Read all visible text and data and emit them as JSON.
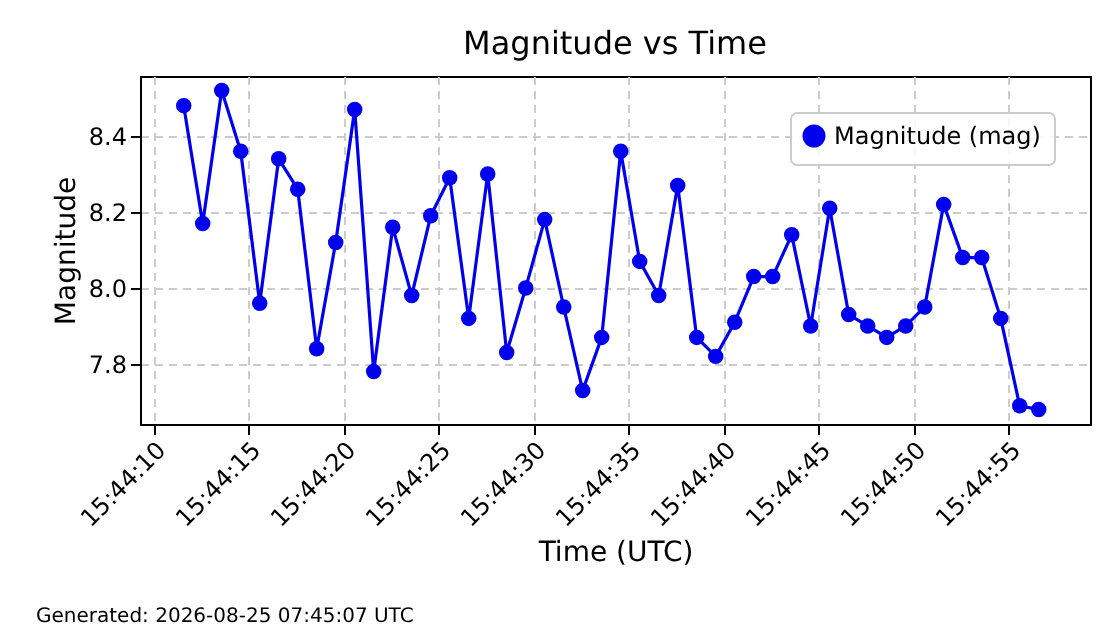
{
  "chart_data": {
    "type": "line",
    "title": "Magnitude vs Time",
    "xlabel": "Time (UTC)",
    "ylabel": "Magnitude",
    "x": [
      "2026-08-25T15:44:11.6",
      "2026-08-25T15:44:12.6",
      "2026-08-25T15:44:13.6",
      "2026-08-25T15:44:14.6",
      "2026-08-25T15:44:15.6",
      "2026-08-25T15:44:16.6",
      "2026-08-25T15:44:17.6",
      "2026-08-25T15:44:18.6",
      "2026-08-25T15:44:19.6",
      "2026-08-25T15:44:20.6",
      "2026-08-25T15:44:21.6",
      "2026-08-25T15:44:22.6",
      "2026-08-25T15:44:23.6",
      "2026-08-25T15:44:24.6",
      "2026-08-25T15:44:25.6",
      "2026-08-25T15:44:26.6",
      "2026-08-25T15:44:27.6",
      "2026-08-25T15:44:28.6",
      "2026-08-25T15:44:29.6",
      "2026-08-25T15:44:30.6",
      "2026-08-25T15:44:31.6",
      "2026-08-25T15:44:32.6",
      "2026-08-25T15:44:33.6",
      "2026-08-25T15:44:34.6",
      "2026-08-25T15:44:35.6",
      "2026-08-25T15:44:36.6",
      "2026-08-25T15:44:37.6",
      "2026-08-25T15:44:38.6",
      "2026-08-25T15:44:39.6",
      "2026-08-25T15:44:40.6",
      "2026-08-25T15:44:41.6",
      "2026-08-25T15:44:42.6",
      "2026-08-25T15:44:43.6",
      "2026-08-25T15:44:44.6",
      "2026-08-25T15:44:45.6",
      "2026-08-25T15:44:46.6",
      "2026-08-25T15:44:47.6",
      "2026-08-25T15:44:48.6",
      "2026-08-25T15:44:49.6",
      "2026-08-25T15:44:50.6",
      "2026-08-25T15:44:51.6",
      "2026-08-25T15:44:52.6",
      "2026-08-25T15:44:53.6",
      "2026-08-25T15:44:54.6",
      "2026-08-25T15:44:55.6",
      "2026-08-25T15:44:56.6"
    ],
    "series": [
      {
        "name": "Magnitude (mag)",
        "color": "#0000ee",
        "values": [
          8.48,
          8.17,
          8.52,
          8.36,
          7.96,
          8.34,
          8.26,
          7.84,
          8.12,
          8.47,
          7.78,
          8.16,
          7.98,
          8.19,
          8.29,
          7.92,
          8.3,
          7.83,
          8.0,
          8.18,
          7.95,
          7.73,
          7.87,
          8.36,
          8.07,
          7.98,
          8.27,
          7.87,
          7.82,
          7.91,
          8.03,
          8.03,
          8.14,
          7.9,
          8.21,
          7.93,
          7.9,
          7.87,
          7.9,
          7.95,
          8.22,
          8.08,
          8.08,
          7.92,
          7.69,
          7.68
        ]
      }
    ],
    "xlim": [
      "2026-08-25T15:44:09.3",
      "2026-08-25T15:44:59.3"
    ],
    "xticks": [
      {
        "value": "2026-08-25T15:44:10",
        "label": "15:44:10"
      },
      {
        "value": "2026-08-25T15:44:15",
        "label": "15:44:15"
      },
      {
        "value": "2026-08-25T15:44:20",
        "label": "15:44:20"
      },
      {
        "value": "2026-08-25T15:44:25",
        "label": "15:44:25"
      },
      {
        "value": "2026-08-25T15:44:30",
        "label": "15:44:30"
      },
      {
        "value": "2026-08-25T15:44:35",
        "label": "15:44:35"
      },
      {
        "value": "2026-08-25T15:44:40",
        "label": "15:44:40"
      },
      {
        "value": "2026-08-25T15:44:45",
        "label": "15:44:45"
      },
      {
        "value": "2026-08-25T15:44:50",
        "label": "15:44:50"
      },
      {
        "value": "2026-08-25T15:44:55",
        "label": "15:44:55"
      }
    ],
    "ylim": [
      7.642,
      8.558
    ],
    "yticks": [
      7.8,
      {
        "value": 8.0,
        "label": "8.0"
      },
      8.2,
      8.4
    ],
    "grid": true,
    "legend": "top right",
    "marker": "circle",
    "line_style": "solid",
    "annotations": [
      "Generated: 2026-08-25 07:45:07 UTC"
    ]
  }
}
